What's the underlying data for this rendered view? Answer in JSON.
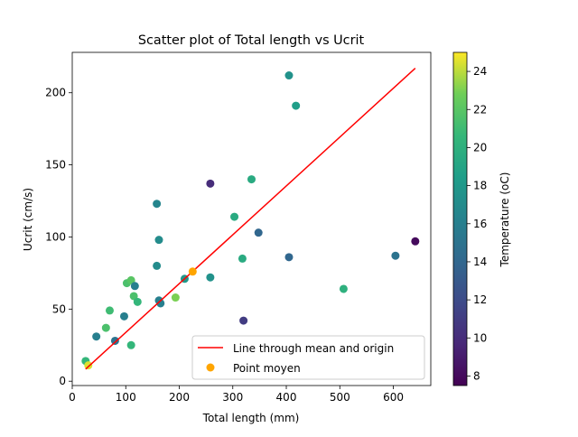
{
  "chart_data": {
    "type": "scatter",
    "title": "Scatter plot of Total length vs Ucrit",
    "xlabel": "Total length (mm)",
    "ylabel": "Ucrit (cm/s)",
    "xlim": [
      0,
      670
    ],
    "ylim": [
      -3,
      228
    ],
    "x_ticks": [
      0,
      100,
      200,
      300,
      400,
      500,
      600
    ],
    "y_ticks": [
      0,
      50,
      100,
      150,
      200
    ],
    "grid": false,
    "legend": {
      "placement": "lower-right",
      "entries": [
        "Line through mean and origin",
        "Point moyen"
      ]
    },
    "colorbar": {
      "label": "Temperature (oC)",
      "range": [
        7.5,
        25
      ],
      "ticks": [
        8,
        10,
        12,
        14,
        16,
        18,
        20,
        22,
        24
      ],
      "colormap": "viridis"
    },
    "series": [
      {
        "name": "",
        "points": [
          {
            "x": 25,
            "y": 14,
            "t": 20.5
          },
          {
            "x": 30,
            "y": 11,
            "t": 24.5
          },
          {
            "x": 45,
            "y": 31,
            "t": 16
          },
          {
            "x": 63,
            "y": 37,
            "t": 21.5
          },
          {
            "x": 70,
            "y": 49,
            "t": 21
          },
          {
            "x": 80,
            "y": 28,
            "t": 15
          },
          {
            "x": 97,
            "y": 45,
            "t": 16
          },
          {
            "x": 102,
            "y": 68,
            "t": 21.5
          },
          {
            "x": 110,
            "y": 25,
            "t": 20.5
          },
          {
            "x": 110,
            "y": 70,
            "t": 22
          },
          {
            "x": 115,
            "y": 59,
            "t": 21.5
          },
          {
            "x": 117,
            "y": 66,
            "t": 16
          },
          {
            "x": 122,
            "y": 55,
            "t": 20.5
          },
          {
            "x": 158,
            "y": 123,
            "t": 16.5
          },
          {
            "x": 158,
            "y": 80,
            "t": 17
          },
          {
            "x": 162,
            "y": 98,
            "t": 17
          },
          {
            "x": 162,
            "y": 56,
            "t": 16
          },
          {
            "x": 165,
            "y": 54,
            "t": 16
          },
          {
            "x": 193,
            "y": 58,
            "t": 23
          },
          {
            "x": 210,
            "y": 71,
            "t": 18
          },
          {
            "x": 258,
            "y": 137,
            "t": 10
          },
          {
            "x": 258,
            "y": 72,
            "t": 17.5
          },
          {
            "x": 303,
            "y": 114,
            "t": 19.5
          },
          {
            "x": 318,
            "y": 85,
            "t": 19.5
          },
          {
            "x": 320,
            "y": 42,
            "t": 11
          },
          {
            "x": 335,
            "y": 140,
            "t": 19.5
          },
          {
            "x": 348,
            "y": 103,
            "t": 14
          },
          {
            "x": 405,
            "y": 86,
            "t": 14
          },
          {
            "x": 405,
            "y": 212,
            "t": 17.5
          },
          {
            "x": 418,
            "y": 191,
            "t": 18.5
          },
          {
            "x": 507,
            "y": 64,
            "t": 20
          },
          {
            "x": 604,
            "y": 87,
            "t": 15
          },
          {
            "x": 641,
            "y": 97,
            "t": 8
          }
        ]
      }
    ],
    "line": {
      "name": "Line through mean and origin",
      "color": "#ff0000",
      "x": [
        25,
        641
      ],
      "y": [
        8.4,
        217
      ]
    },
    "mean_point": {
      "name": "Point moyen",
      "color": "#ffa500",
      "x": 225,
      "y": 76
    }
  }
}
